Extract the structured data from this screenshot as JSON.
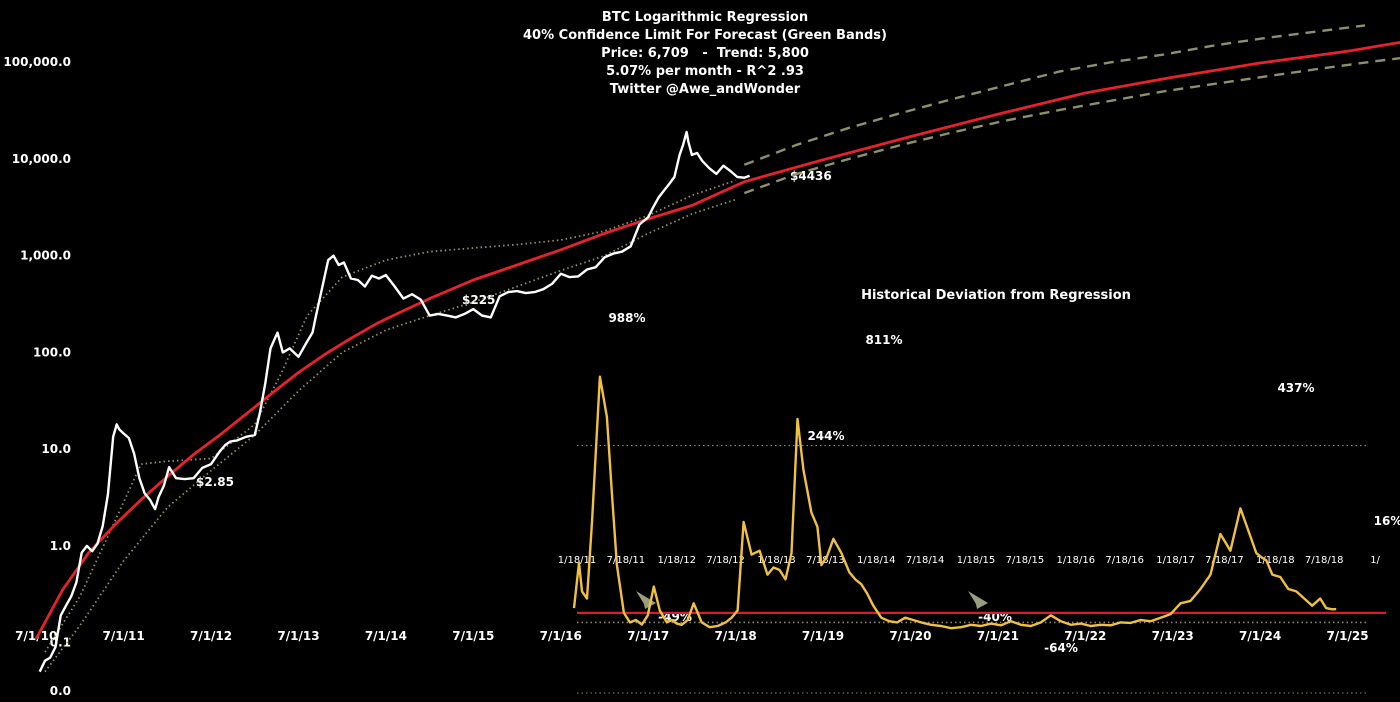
{
  "chart_data": [
    {
      "type": "line",
      "title_lines": [
        "BTC Logarithmic Regression",
        "40% Confidence Limit For Forecast (Green Bands)",
        "Price: 6,709   -  Trend: 5,800",
        "5.07% per month - R^2 .93",
        "Twitter @Awe_andWonder"
      ],
      "y_scale": "log",
      "ylim": [
        0.0316,
        177828
      ],
      "y_tick_labels": [
        "0.0",
        "0.1",
        "1.0",
        "10.0",
        "100.0",
        "1,000.0",
        "10,000.0",
        "100,000.0"
      ],
      "y_tick_values": [
        0.0316,
        0.1,
        1,
        10,
        100,
        1000,
        10000,
        100000
      ],
      "x_tick_labels": [
        "7/1/10",
        "7/1/11",
        "7/1/12",
        "7/1/13",
        "7/1/14",
        "7/1/15",
        "7/1/16",
        "7/1/17",
        "7/1/18",
        "7/1/19",
        "7/1/20",
        "7/1/21",
        "7/1/22",
        "7/1/23",
        "7/1/24",
        "7/1/25"
      ],
      "x_tick_years": [
        2010.5,
        2011.5,
        2012.5,
        2013.5,
        2014.5,
        2015.5,
        2016.5,
        2017.5,
        2018.5,
        2019.5,
        2020.5,
        2021.5,
        2022.5,
        2023.5,
        2024.5,
        2025.5
      ],
      "xlim": [
        2010.2,
        2026.1
      ],
      "series": [
        {
          "color": "#ffffff",
          "x": [
            2010.54,
            2010.6,
            2010.66,
            2010.72,
            2010.78,
            2010.84,
            2010.9,
            2010.96,
            2011.02,
            2011.08,
            2011.14,
            2011.2,
            2011.26,
            2011.32,
            2011.38,
            2011.42,
            2011.45,
            2011.5,
            2011.56,
            2011.62,
            2011.68,
            2011.74,
            2011.8,
            2011.86,
            2011.9,
            2011.96,
            2012.02,
            2012.1,
            2012.2,
            2012.3,
            2012.4,
            2012.5,
            2012.6,
            2012.66,
            2012.72,
            2012.8,
            2012.9,
            2013.0,
            2013.06,
            2013.12,
            2013.18,
            2013.26,
            2013.32,
            2013.4,
            2013.5,
            2013.6,
            2013.66,
            2013.7,
            2013.76,
            2013.84,
            2013.9,
            2013.96,
            2014.02,
            2014.1,
            2014.18,
            2014.26,
            2014.34,
            2014.42,
            2014.5,
            2014.6,
            2014.7,
            2014.8,
            2014.9,
            2015.0,
            2015.1,
            2015.2,
            2015.3,
            2015.4,
            2015.5,
            2015.6,
            2015.7,
            2015.8,
            2015.9,
            2016.0,
            2016.1,
            2016.2,
            2016.3,
            2016.4,
            2016.5,
            2016.6,
            2016.7,
            2016.8,
            2016.9,
            2017.0,
            2017.1,
            2017.2,
            2017.3,
            2017.4,
            2017.5,
            2017.56,
            2017.62,
            2017.68,
            2017.74,
            2017.8,
            2017.86,
            2017.9,
            2017.94,
            2017.96,
            2018.0,
            2018.06,
            2018.12,
            2018.2,
            2018.28,
            2018.36,
            2018.44,
            2018.52,
            2018.6,
            2018.66
          ],
          "y": [
            0.05,
            0.065,
            0.07,
            0.09,
            0.19,
            0.24,
            0.3,
            0.42,
            0.85,
            1.0,
            0.88,
            1.05,
            1.6,
            3.4,
            13.5,
            18.0,
            16.0,
            14.5,
            13.0,
            9.0,
            5.0,
            3.5,
            3.0,
            2.4,
            3.2,
            4.2,
            6.5,
            5.0,
            4.9,
            5.0,
            6.4,
            7.0,
            9.5,
            11.0,
            12.0,
            12.3,
            13.4,
            14.0,
            24.0,
            48.0,
            110.0,
            160.0,
            100.0,
            110.0,
            90.0,
            130.0,
            160.0,
            240.0,
            420.0,
            900.0,
            1000.0,
            800.0,
            850.0,
            580.0,
            560.0,
            480.0,
            620.0,
            580.0,
            630.0,
            480.0,
            360.0,
            400.0,
            350.0,
            240.0,
            250.0,
            240.0,
            230.0,
            250.0,
            280.0,
            240.0,
            230.0,
            380.0,
            420.0,
            430.0,
            410.0,
            420.0,
            450.0,
            510.0,
            650.0,
            600.0,
            610.0,
            720.0,
            760.0,
            960.0,
            1050.0,
            1100.0,
            1250.0,
            2100.0,
            2500.0,
            3200.0,
            4000.0,
            4700.0,
            5500.0,
            6500.0,
            11000.0,
            14000.0,
            19000.0,
            15000.0,
            11000.0,
            11500.0,
            9500.0,
            8000.0,
            7000.0,
            8500.0,
            7500.0,
            6500.0,
            6400.0,
            6709.0
          ]
        },
        {
          "color": "#e8212e",
          "x": [
            2010.5,
            2010.8,
            2011.1,
            2011.4,
            2011.7,
            2012.0,
            2012.3,
            2012.6,
            2012.9,
            2013.2,
            2013.5,
            2013.8,
            2014.1,
            2014.4,
            2014.7,
            2015.0,
            2015.5,
            2016.0,
            2016.5,
            2017.0,
            2017.5,
            2018.0,
            2018.6,
            2019.5,
            2020.5,
            2021.5,
            2022.5,
            2023.5,
            2024.5,
            2025.5,
            2026.1
          ],
          "y": [
            0.11,
            0.35,
            0.85,
            1.65,
            3.0,
            5.2,
            8.8,
            14.0,
            23.0,
            38.0,
            62.0,
            95.0,
            140.0,
            200.0,
            270.0,
            360.0,
            560.0,
            800.0,
            1150.0,
            1700.0,
            2400.0,
            3300.0,
            5800.0,
            9800.0,
            17000.0,
            29000.0,
            48000.0,
            70000.0,
            98000.0,
            130000.0,
            160000.0
          ]
        },
        {
          "color": "#8f8f6a",
          "x": [
            2018.6,
            2019.2,
            2019.8,
            2020.4,
            2021.0,
            2021.6,
            2022.2,
            2022.8,
            2023.4,
            2024.0,
            2024.6,
            2025.2,
            2025.7
          ],
          "y": [
            8700.0,
            14000.0,
            21000.0,
            30000.0,
            42000.0,
            58000.0,
            80000.0,
            100000.0,
            120000.0,
            150000.0,
            180000.0,
            210000.0,
            240000.0
          ]
        },
        {
          "color": "#8f8f6a",
          "x": [
            2018.6,
            2019.2,
            2019.8,
            2020.4,
            2021.0,
            2021.6,
            2022.2,
            2022.8,
            2023.4,
            2024.0,
            2024.6,
            2025.2,
            2025.8,
            2026.1
          ],
          "y": [
            4436.0,
            7000.0,
            10000.0,
            14000.0,
            19000.0,
            25000.0,
            32000.0,
            40000.0,
            50000.0,
            60000.0,
            72000.0,
            86000.0,
            102000.0,
            110000.0
          ]
        },
        {
          "color": "#8f8f6a",
          "x": [
            2010.6,
            2011.0,
            2011.4,
            2011.7,
            2012.0,
            2012.5,
            2013.0,
            2013.3,
            2013.6,
            2014.0,
            2014.5,
            2015.0,
            2015.5,
            2016.0,
            2016.5,
            2017.0,
            2017.5,
            2018.0,
            2018.5
          ],
          "y": [
            0.08,
            0.3,
            1.8,
            7.0,
            7.5,
            8.0,
            18.0,
            60.0,
            240.0,
            600.0,
            900.0,
            1100.0,
            1200.0,
            1300.0,
            1450.0,
            1800.0,
            2600.0,
            4200.0,
            6000.0
          ]
        },
        {
          "color": "#8f8f6a",
          "x": [
            2010.6,
            2011.0,
            2011.5,
            2012.0,
            2012.5,
            2013.0,
            2013.5,
            2014.0,
            2014.5,
            2015.0,
            2015.5,
            2016.0,
            2016.5,
            2017.0,
            2017.5,
            2018.0,
            2018.5
          ],
          "y": [
            0.05,
            0.15,
            0.7,
            2.5,
            6.0,
            14.0,
            40.0,
            100.0,
            170.0,
            240.0,
            330.0,
            480.0,
            700.0,
            1000.0,
            1700.0,
            2700.0,
            3800.0
          ]
        }
      ],
      "annotations": [
        "$2.85",
        "$225",
        "$4436"
      ]
    },
    {
      "type": "line",
      "title": "Historical Deviation from Regression",
      "x_tick_labels": [
        "1/18/11",
        "7/18/11",
        "1/18/12",
        "7/18/12",
        "1/18/13",
        "7/18/13",
        "1/18/14",
        "7/18/14",
        "1/18/15",
        "7/18/15",
        "1/18/16",
        "7/18/16",
        "1/18/17",
        "7/18/17",
        "1/18/18",
        "7/18/18",
        "1/"
      ],
      "x_tick_years": [
        2011.05,
        2011.54,
        2012.05,
        2012.54,
        2013.05,
        2013.54,
        2014.05,
        2014.54,
        2015.05,
        2015.54,
        2016.05,
        2016.54,
        2017.05,
        2017.54,
        2018.05,
        2018.54,
        2019.05
      ],
      "reference_line": 0,
      "upper_band_pct": 700,
      "lower_band_pct": -40,
      "xlim": [
        2011.05,
        2019.3
      ],
      "ylim": [
        -80,
        1150
      ],
      "series": [
        {
          "color": "#f0c040",
          "x": [
            2011.02,
            2011.07,
            2011.1,
            2011.15,
            2011.2,
            2011.28,
            2011.35,
            2011.4,
            2011.45,
            2011.52,
            2011.58,
            2011.64,
            2011.7,
            2011.76,
            2011.82,
            2011.88,
            2011.95,
            2012.0,
            2012.05,
            2012.1,
            2012.16,
            2012.22,
            2012.3,
            2012.38,
            2012.46,
            2012.54,
            2012.6,
            2012.66,
            2012.72,
            2012.8,
            2012.88,
            2012.96,
            2013.02,
            2013.08,
            2013.14,
            2013.2,
            2013.26,
            2013.32,
            2013.4,
            2013.46,
            2013.5,
            2013.56,
            2013.62,
            2013.7,
            2013.78,
            2013.84,
            2013.9,
            2013.96,
            2014.02,
            2014.1,
            2014.18,
            2014.26,
            2014.34,
            2014.42,
            2014.5,
            2014.6,
            2014.7,
            2014.8,
            2014.9,
            2015.0,
            2015.1,
            2015.2,
            2015.3,
            2015.4,
            2015.5,
            2015.6,
            2015.7,
            2015.8,
            2015.9,
            2016.0,
            2016.1,
            2016.2,
            2016.3,
            2016.4,
            2016.5,
            2016.6,
            2016.7,
            2016.8,
            2016.9,
            2017.0,
            2017.1,
            2017.2,
            2017.3,
            2017.4,
            2017.5,
            2017.6,
            2017.7,
            2017.8,
            2017.86,
            2017.92,
            2017.96,
            2018.02,
            2018.1,
            2018.18,
            2018.26,
            2018.34,
            2018.42,
            2018.5,
            2018.56,
            2018.62,
            2018.66
          ],
          "y": [
            20,
            210,
            90,
            60,
            380,
            988,
            820,
            500,
            200,
            0,
            -40,
            -30,
            -49,
            -10,
            110,
            10,
            -40,
            -30,
            -45,
            -50,
            -30,
            40,
            -40,
            -60,
            -55,
            -40,
            -20,
            10,
            380,
            244,
            260,
            160,
            190,
            180,
            140,
            250,
            811,
            600,
            420,
            360,
            200,
            240,
            310,
            250,
            170,
            140,
            120,
            80,
            30,
            -20,
            -35,
            -40,
            -20,
            -30,
            -40,
            -50,
            -55,
            -64,
            -60,
            -50,
            -55,
            -45,
            -52,
            -35,
            -50,
            -55,
            -40,
            -10,
            -35,
            -50,
            -45,
            -55,
            -50,
            -52,
            -40,
            -42,
            -30,
            -35,
            -20,
            -5,
            40,
            50,
            100,
            160,
            330,
            260,
            437,
            320,
            250,
            230,
            220,
            160,
            150,
            100,
            90,
            60,
            30,
            60,
            20,
            15,
            16
          ]
        }
      ],
      "annotations": [
        "988%",
        "811%",
        "244%",
        "437%",
        "-49%",
        "-40%",
        "-64%",
        "16%"
      ]
    }
  ]
}
